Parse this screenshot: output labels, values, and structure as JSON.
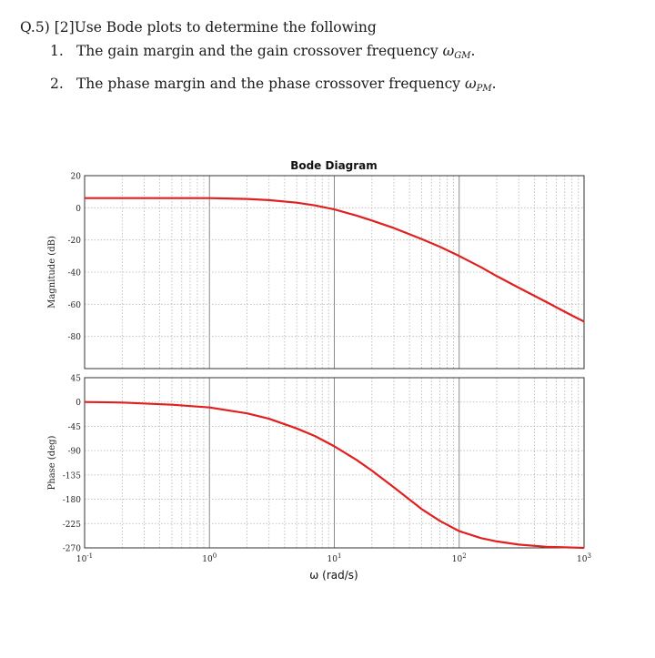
{
  "question": {
    "label": "Q.5)",
    "marks": "[2]",
    "prompt": "Use Bode plots to determine the following",
    "items": [
      {
        "number": "1.",
        "text": "The gain margin and the gain crossover frequency",
        "symbol": "ω",
        "subscript": "GM",
        "end": "."
      },
      {
        "number": "2.",
        "text": "The phase margin and the phase crossover frequency",
        "symbol": "ω",
        "subscript": "PM",
        "end": "."
      }
    ]
  },
  "chart_data": {
    "type": "line",
    "title": "Bode Diagram",
    "xlabel": "ω (rad/s)",
    "xscale": "log",
    "xlim": [
      0.1,
      1000
    ],
    "xticks": [
      0.1,
      1,
      10,
      100,
      1000
    ],
    "xtick_labels": [
      {
        "base": "10",
        "exp": "-1"
      },
      {
        "base": "10",
        "exp": "0"
      },
      {
        "base": "10",
        "exp": "1"
      },
      {
        "base": "10",
        "exp": "2"
      },
      {
        "base": "10",
        "exp": "3"
      }
    ],
    "grid": true,
    "line_color": "#e0201f",
    "panels": [
      {
        "name": "magnitude",
        "ylabel": "Magnitude (dB)",
        "ylim": [
          -100,
          20
        ],
        "yticks": [
          20,
          0,
          -20,
          -40,
          -60,
          -80
        ],
        "series": [
          {
            "x": [
              0.1,
              0.2,
              0.5,
              1,
              2,
              3,
              5,
              7,
              10,
              15,
              20,
              30,
              50,
              70,
              100,
              150,
              200,
              300,
              500,
              700,
              1000
            ],
            "y": [
              6,
              6,
              6,
              6,
              5.5,
              4.8,
              3.2,
              1.5,
              -1,
              -4.8,
              -7.9,
              -12.6,
              -19.4,
              -24.2,
              -30,
              -37,
              -42.5,
              -49.7,
              -58.6,
              -64.6,
              -70.8
            ]
          }
        ]
      },
      {
        "name": "phase",
        "ylabel": "Phase (deg)",
        "ylim": [
          -270,
          45
        ],
        "yticks": [
          45,
          0,
          -45,
          -90,
          -135,
          -180,
          -225,
          -270
        ],
        "series": [
          {
            "x": [
              0.1,
              0.2,
              0.5,
              1,
              2,
              3,
              5,
              7,
              10,
              15,
              20,
              30,
              50,
              70,
              100,
              150,
              200,
              300,
              500,
              700,
              1000
            ],
            "y": [
              0,
              -1,
              -5,
              -10,
              -21,
              -31,
              -49,
              -63,
              -82,
              -107,
              -127,
              -158,
              -198,
              -220,
              -239,
              -252,
              -258,
              -264,
              -268,
              -269,
              -270
            ]
          }
        ]
      }
    ]
  }
}
